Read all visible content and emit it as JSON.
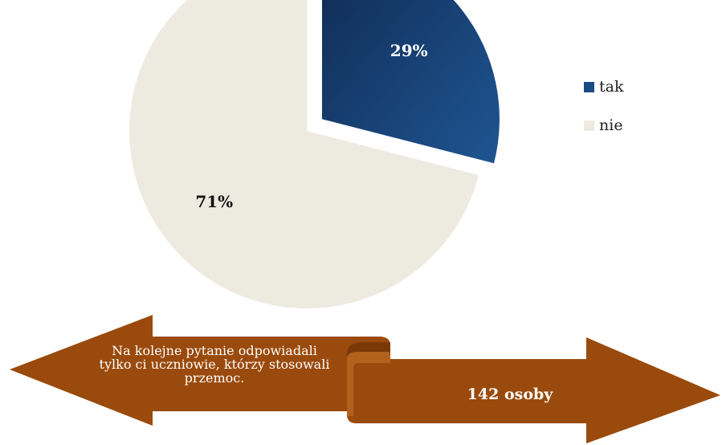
{
  "chart_data": {
    "type": "pie",
    "slices": [
      {
        "label": "tak",
        "value": 29,
        "display": "29%",
        "color": "#1b4a84",
        "exploded": true
      },
      {
        "label": "nie",
        "value": 71,
        "display": "71%",
        "color": "#edebe0",
        "exploded": false
      }
    ],
    "legend_position": "right",
    "legend": [
      "tak",
      "nie"
    ]
  },
  "arrows": {
    "left_text": "Na kolejne pytanie odpowiadali tylko ci uczniowie, którzy stosowali przemoc.",
    "right_text": "142 osoby",
    "color": "#9a4a0c"
  }
}
